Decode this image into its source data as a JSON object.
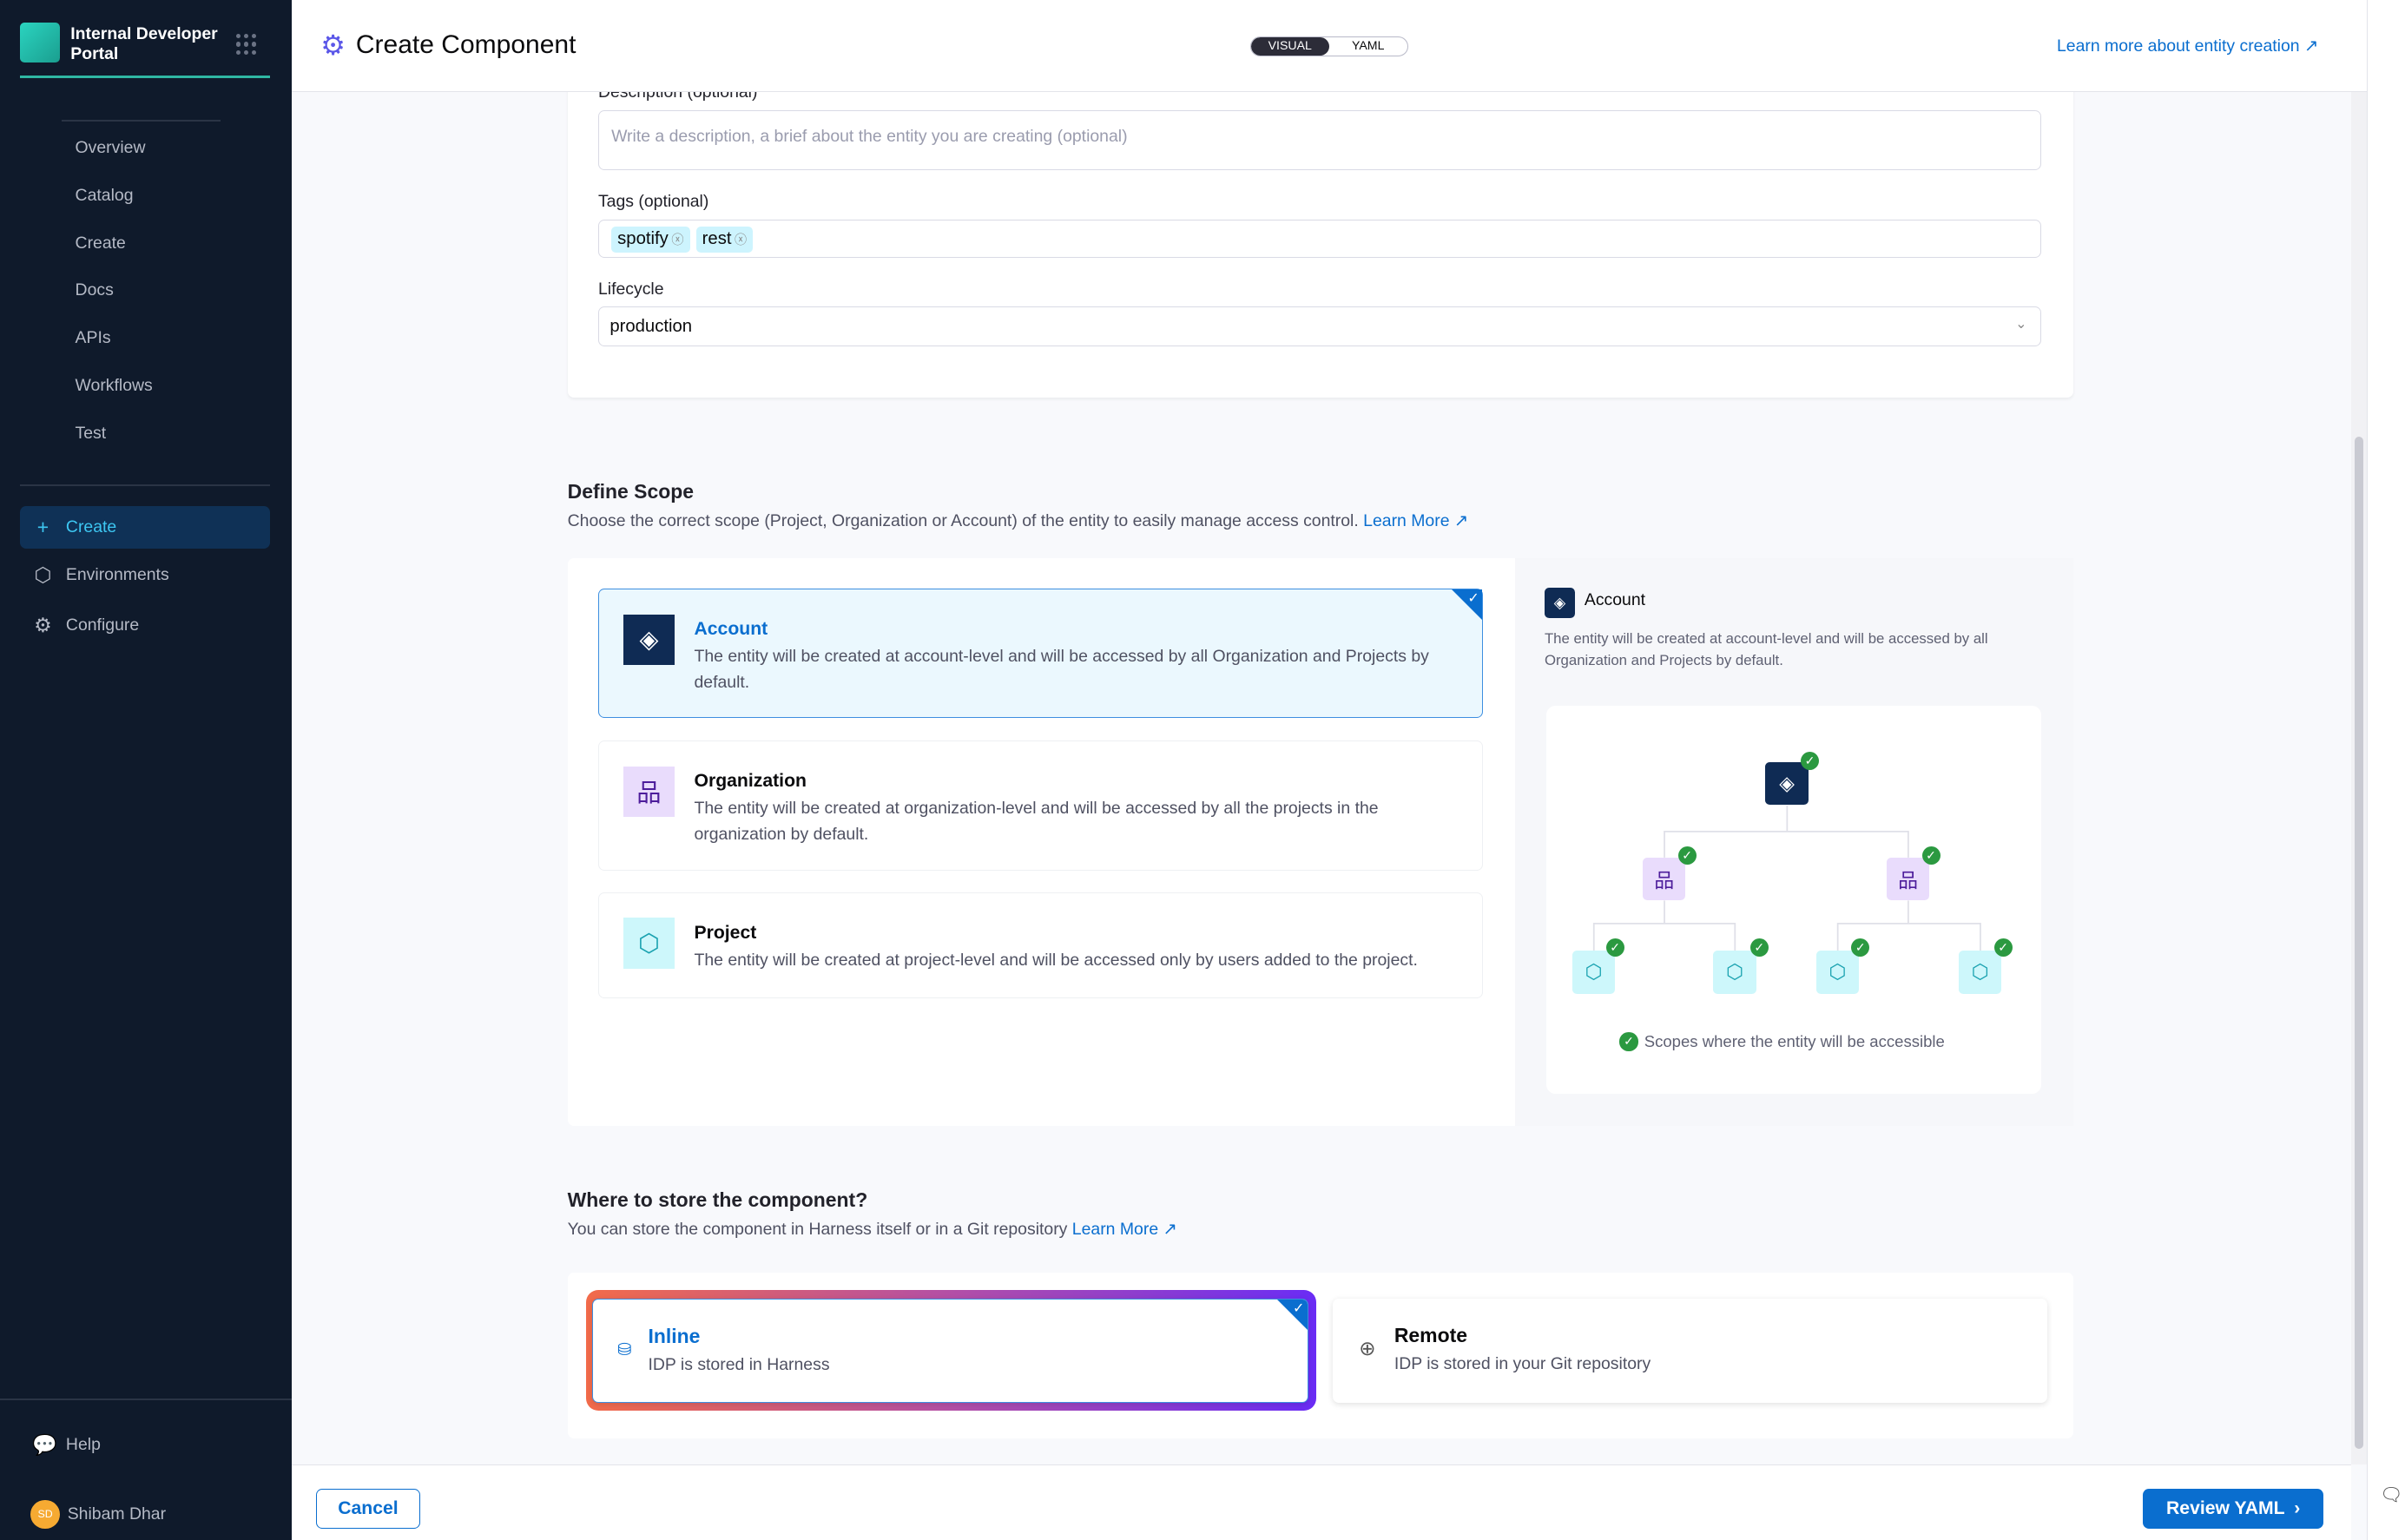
{
  "sidebar": {
    "brand": "Internal Developer Portal",
    "items": [
      {
        "label": "Overview"
      },
      {
        "label": "Catalog"
      },
      {
        "label": "Create"
      },
      {
        "label": "Docs"
      },
      {
        "label": "APIs"
      },
      {
        "label": "Workflows"
      },
      {
        "label": "Test"
      }
    ],
    "main_items": [
      {
        "label": "Create",
        "icon": "plus-icon",
        "active": true
      },
      {
        "label": "Environments",
        "icon": "environments-icon"
      },
      {
        "label": "Configure",
        "icon": "gear-icon"
      }
    ],
    "help": "Help",
    "user": {
      "initials": "SD",
      "name": "Shibam Dhar"
    }
  },
  "header": {
    "title": "Create Component",
    "toggle": [
      "VISUAL",
      "YAML"
    ],
    "active_mode": "VISUAL",
    "learn_more": "Learn more about entity creation"
  },
  "form": {
    "description_label": "Description (optional)",
    "description_placeholder": "Write a description, a brief about the entity you are creating (optional)",
    "tags_label": "Tags (optional)",
    "tags": [
      "spotify",
      "rest"
    ],
    "lifecycle_label": "Lifecycle",
    "lifecycle_value": "production"
  },
  "scope": {
    "title": "Define Scope",
    "description": "Choose the correct scope (Project, Organization or Account) of the entity to easily manage access control.",
    "learn_more": "Learn More",
    "options": [
      {
        "title": "Account",
        "description": "The entity will be created at account-level and will be accessed by all Organization and Projects by default.",
        "selected": true
      },
      {
        "title": "Organization",
        "description": "The entity will be created at organization-level and will be accessed by all the projects in the organization by default.",
        "selected": false
      },
      {
        "title": "Project",
        "description": "The entity will be created at project-level and will be accessed only by users added to the project.",
        "selected": false
      }
    ],
    "preview": {
      "title": "Account",
      "description": "The entity will be created at account-level and will be accessed by all Organization and Projects by default.",
      "legend": "Scopes where the entity will be accessible"
    }
  },
  "storage": {
    "title": "Where to store the component?",
    "description": "You can store the component in Harness itself or in a Git repository",
    "learn_more": "Learn More",
    "options": [
      {
        "title": "Inline",
        "description": "IDP is stored in Harness",
        "selected": true
      },
      {
        "title": "Remote",
        "description": "IDP is stored in your Git repository",
        "selected": false
      }
    ]
  },
  "footer": {
    "cancel": "Cancel",
    "review": "Review YAML"
  },
  "colors": {
    "sidebar": "#0f1a2b",
    "accent": "#0a6ecf",
    "active_nav": "#3dc7f2",
    "check": "#2b9940"
  }
}
